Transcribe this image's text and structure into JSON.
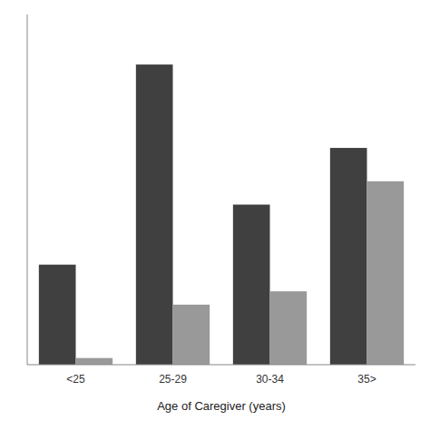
{
  "chart_data": {
    "type": "bar",
    "categories": [
      "<25",
      "25-29",
      "30-34",
      "35>"
    ],
    "series": [
      {
        "color": "#404040",
        "values": [
          30,
          90,
          48,
          65
        ]
      },
      {
        "color": "#999999",
        "values": [
          2,
          18,
          22,
          55
        ]
      }
    ],
    "xlabel": "Age of Caregiver (years)",
    "ylim": [
      0,
      105
    ],
    "tick_labels": "x"
  }
}
